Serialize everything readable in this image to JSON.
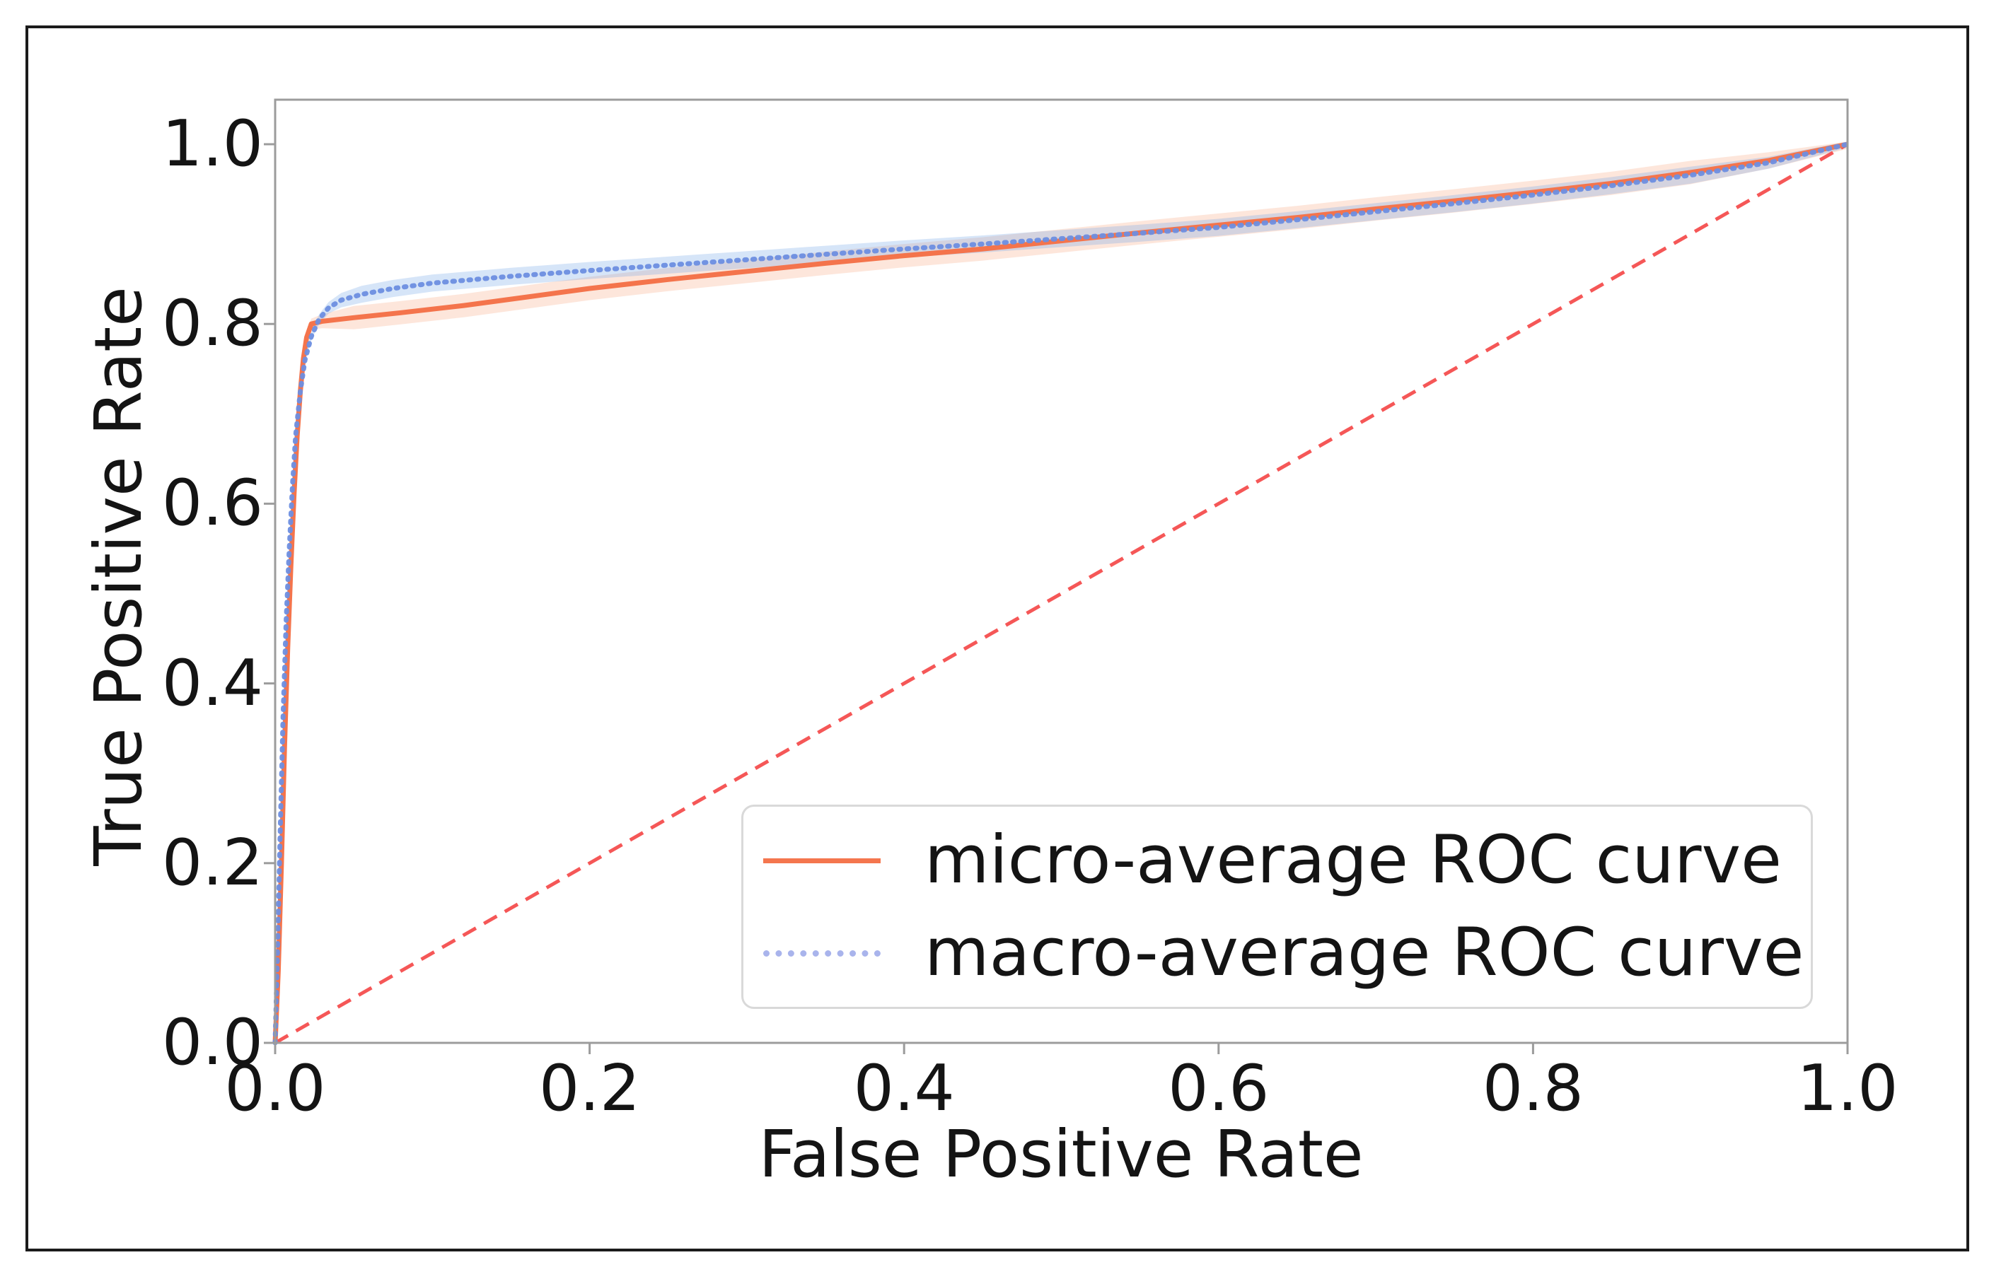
{
  "chart_data": {
    "type": "line",
    "title": "",
    "xlabel": "False Positive Rate",
    "ylabel": "True Positive Rate",
    "xlim": [
      0,
      1
    ],
    "ylim": [
      0,
      1.05
    ],
    "grid": false,
    "x_tick_labels": [
      "0.0",
      "0.2",
      "0.4",
      "0.6",
      "0.8",
      "1.0"
    ],
    "x_tick_values": [
      0,
      0.2,
      0.4,
      0.6,
      0.8,
      1.0
    ],
    "y_tick_labels": [
      "0.0",
      "0.2",
      "0.4",
      "0.6",
      "0.8",
      "1.0"
    ],
    "y_tick_values": [
      0,
      0.2,
      0.4,
      0.6,
      0.8,
      1.0
    ],
    "spine_color": "#9c9c9c",
    "legend": {
      "position": "lower right",
      "entries": [
        {
          "label": "micro-average ROC curve",
          "color": "#f4764e",
          "style": "solid"
        },
        {
          "label": "macro-average ROC curve",
          "color": "#a9b4ec",
          "style": "dotted"
        }
      ]
    },
    "reference_line": {
      "name": "chance-diagonal",
      "style": "dashed",
      "color": "#f54545",
      "from": [
        0,
        0
      ],
      "to": [
        1,
        1
      ]
    },
    "series": [
      {
        "name": "micro-average ROC curve",
        "style": "solid",
        "color": "#f4744c",
        "band_color": "rgba(246,140,90,0.22)",
        "band_halfwidth": 0.013,
        "points": [
          [
            0.0,
            0.0
          ],
          [
            0.002,
            0.08
          ],
          [
            0.004,
            0.2
          ],
          [
            0.006,
            0.33
          ],
          [
            0.008,
            0.44
          ],
          [
            0.01,
            0.53
          ],
          [
            0.012,
            0.61
          ],
          [
            0.014,
            0.675
          ],
          [
            0.016,
            0.725
          ],
          [
            0.018,
            0.762
          ],
          [
            0.02,
            0.785
          ],
          [
            0.023,
            0.8
          ],
          [
            0.03,
            0.803
          ],
          [
            0.05,
            0.807
          ],
          [
            0.08,
            0.8125
          ],
          [
            0.12,
            0.8205
          ],
          [
            0.16,
            0.83
          ],
          [
            0.2,
            0.8395
          ],
          [
            0.25,
            0.8495
          ],
          [
            0.3,
            0.8585
          ],
          [
            0.35,
            0.8675
          ],
          [
            0.4,
            0.876
          ],
          [
            0.45,
            0.8835
          ],
          [
            0.5,
            0.8925
          ],
          [
            0.55,
            0.9015
          ],
          [
            0.6,
            0.91
          ],
          [
            0.65,
            0.9185
          ],
          [
            0.7,
            0.928
          ],
          [
            0.75,
            0.937
          ],
          [
            0.8,
            0.9465
          ],
          [
            0.85,
            0.9565
          ],
          [
            0.9,
            0.9685
          ],
          [
            0.95,
            0.982
          ],
          [
            1.0,
            1.0
          ]
        ]
      },
      {
        "name": "macro-average ROC curve",
        "style": "dotted",
        "color": "#6d8ee0",
        "band_color": "rgba(120,170,232,0.30)",
        "band_halfwidth": 0.0095,
        "points": [
          [
            0.0,
            0.0
          ],
          [
            0.0015,
            0.1
          ],
          [
            0.003,
            0.22
          ],
          [
            0.005,
            0.36
          ],
          [
            0.007,
            0.47
          ],
          [
            0.009,
            0.55
          ],
          [
            0.011,
            0.62
          ],
          [
            0.013,
            0.675
          ],
          [
            0.016,
            0.725
          ],
          [
            0.019,
            0.76
          ],
          [
            0.023,
            0.786
          ],
          [
            0.028,
            0.8055
          ],
          [
            0.034,
            0.818
          ],
          [
            0.042,
            0.8265
          ],
          [
            0.055,
            0.833
          ],
          [
            0.075,
            0.8395
          ],
          [
            0.1,
            0.8455
          ],
          [
            0.15,
            0.853
          ],
          [
            0.2,
            0.8595
          ],
          [
            0.25,
            0.8655
          ],
          [
            0.3,
            0.8715
          ],
          [
            0.35,
            0.8775
          ],
          [
            0.4,
            0.8835
          ],
          [
            0.45,
            0.889
          ],
          [
            0.5,
            0.895
          ],
          [
            0.55,
            0.901
          ],
          [
            0.6,
            0.9075
          ],
          [
            0.65,
            0.916
          ],
          [
            0.7,
            0.925
          ],
          [
            0.75,
            0.934
          ],
          [
            0.8,
            0.9435
          ],
          [
            0.85,
            0.954
          ],
          [
            0.9,
            0.9655
          ],
          [
            0.95,
            0.9795
          ],
          [
            1.0,
            1.0
          ]
        ]
      }
    ],
    "layout": {
      "plot_left": 389,
      "plot_top": 141,
      "plot_right": 2612,
      "plot_bottom": 1475,
      "y_unit_top": 204,
      "tick_length": 16
    }
  }
}
